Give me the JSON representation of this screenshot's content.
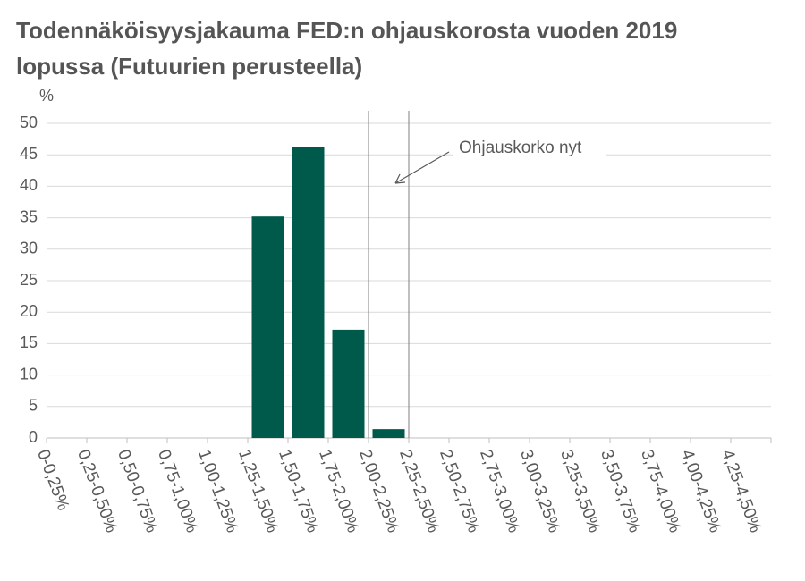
{
  "chart_data": {
    "type": "bar",
    "title": "Todennäköisyysjakauma FED:n ohjauskorosta vuoden 2019 lopussa (Futuurien perusteella)",
    "y_label": "%",
    "categories": [
      "0-0,25%",
      "0,25-0,50%",
      "0,50-0,75%",
      "0,75-1,00%",
      "1,00-1,25%",
      "1,25-1,50%",
      "1,50-1,75%",
      "1,75-2,00%",
      "2,00-2,25%",
      "2,25-2,50%",
      "2,50-2,75%",
      "2,75-3,00%",
      "3,00-3,25%",
      "3,25-3,50%",
      "3,50-3,75%",
      "3,75-4,00%",
      "4,00-4,25%",
      "4,25-4,50%"
    ],
    "values": [
      0,
      0,
      0,
      0,
      0,
      35.2,
      46.3,
      17.2,
      1.4,
      0,
      0,
      0,
      0,
      0,
      0,
      0,
      0,
      0
    ],
    "color": "#005a4b",
    "ylim": [
      0,
      50
    ],
    "yticks": [
      0,
      5,
      10,
      15,
      20,
      25,
      30,
      35,
      40,
      45,
      50
    ],
    "grid": true,
    "annotation": {
      "text": "Ohjauskorko nyt",
      "category": "2,00-2,25%"
    }
  }
}
